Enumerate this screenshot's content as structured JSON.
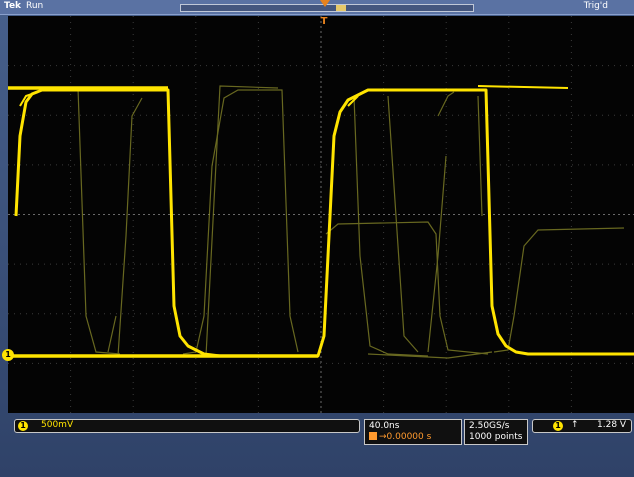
{
  "top": {
    "brand": "Tek",
    "acquisition_state": "Run",
    "trigger_state": "Trig'd"
  },
  "screen": {
    "channel_marker": "1",
    "trigger_position_marker": "T"
  },
  "readouts": {
    "channel_number": "1",
    "vertical_scale": "500mV",
    "horizontal_scale": "40.0ns",
    "trigger_delay": "→0.00000 s",
    "sample_rate": "2.50GS/s",
    "record_length": "1000 points",
    "trigger_source": "1",
    "trigger_slope": "↑",
    "trigger_level": "1.28 V"
  },
  "colors": {
    "trace": "#ffe400",
    "trigger": "#e6821e",
    "background": "#040404"
  }
}
